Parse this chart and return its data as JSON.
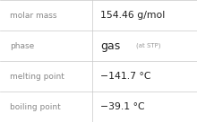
{
  "rows": [
    {
      "label": "molar mass",
      "value": "154.46 g/mol",
      "special": null
    },
    {
      "label": "phase",
      "value": "gas",
      "special": "(at STP)"
    },
    {
      "label": "melting point",
      "value": "−141.7 °C",
      "special": null
    },
    {
      "label": "boiling point",
      "value": "−39.1 °C",
      "special": null
    }
  ],
  "col_split": 0.47,
  "background_color": "#ffffff",
  "cell_bg_color": "#ffffff",
  "line_color": "#c8c8c8",
  "label_color": "#888888",
  "value_color": "#222222",
  "stp_color": "#999999",
  "label_fontsize": 6.5,
  "value_fontsize": 7.8,
  "gas_fontsize": 9.0,
  "stp_fontsize": 5.0,
  "figwidth": 2.2,
  "figheight": 1.36,
  "dpi": 100
}
